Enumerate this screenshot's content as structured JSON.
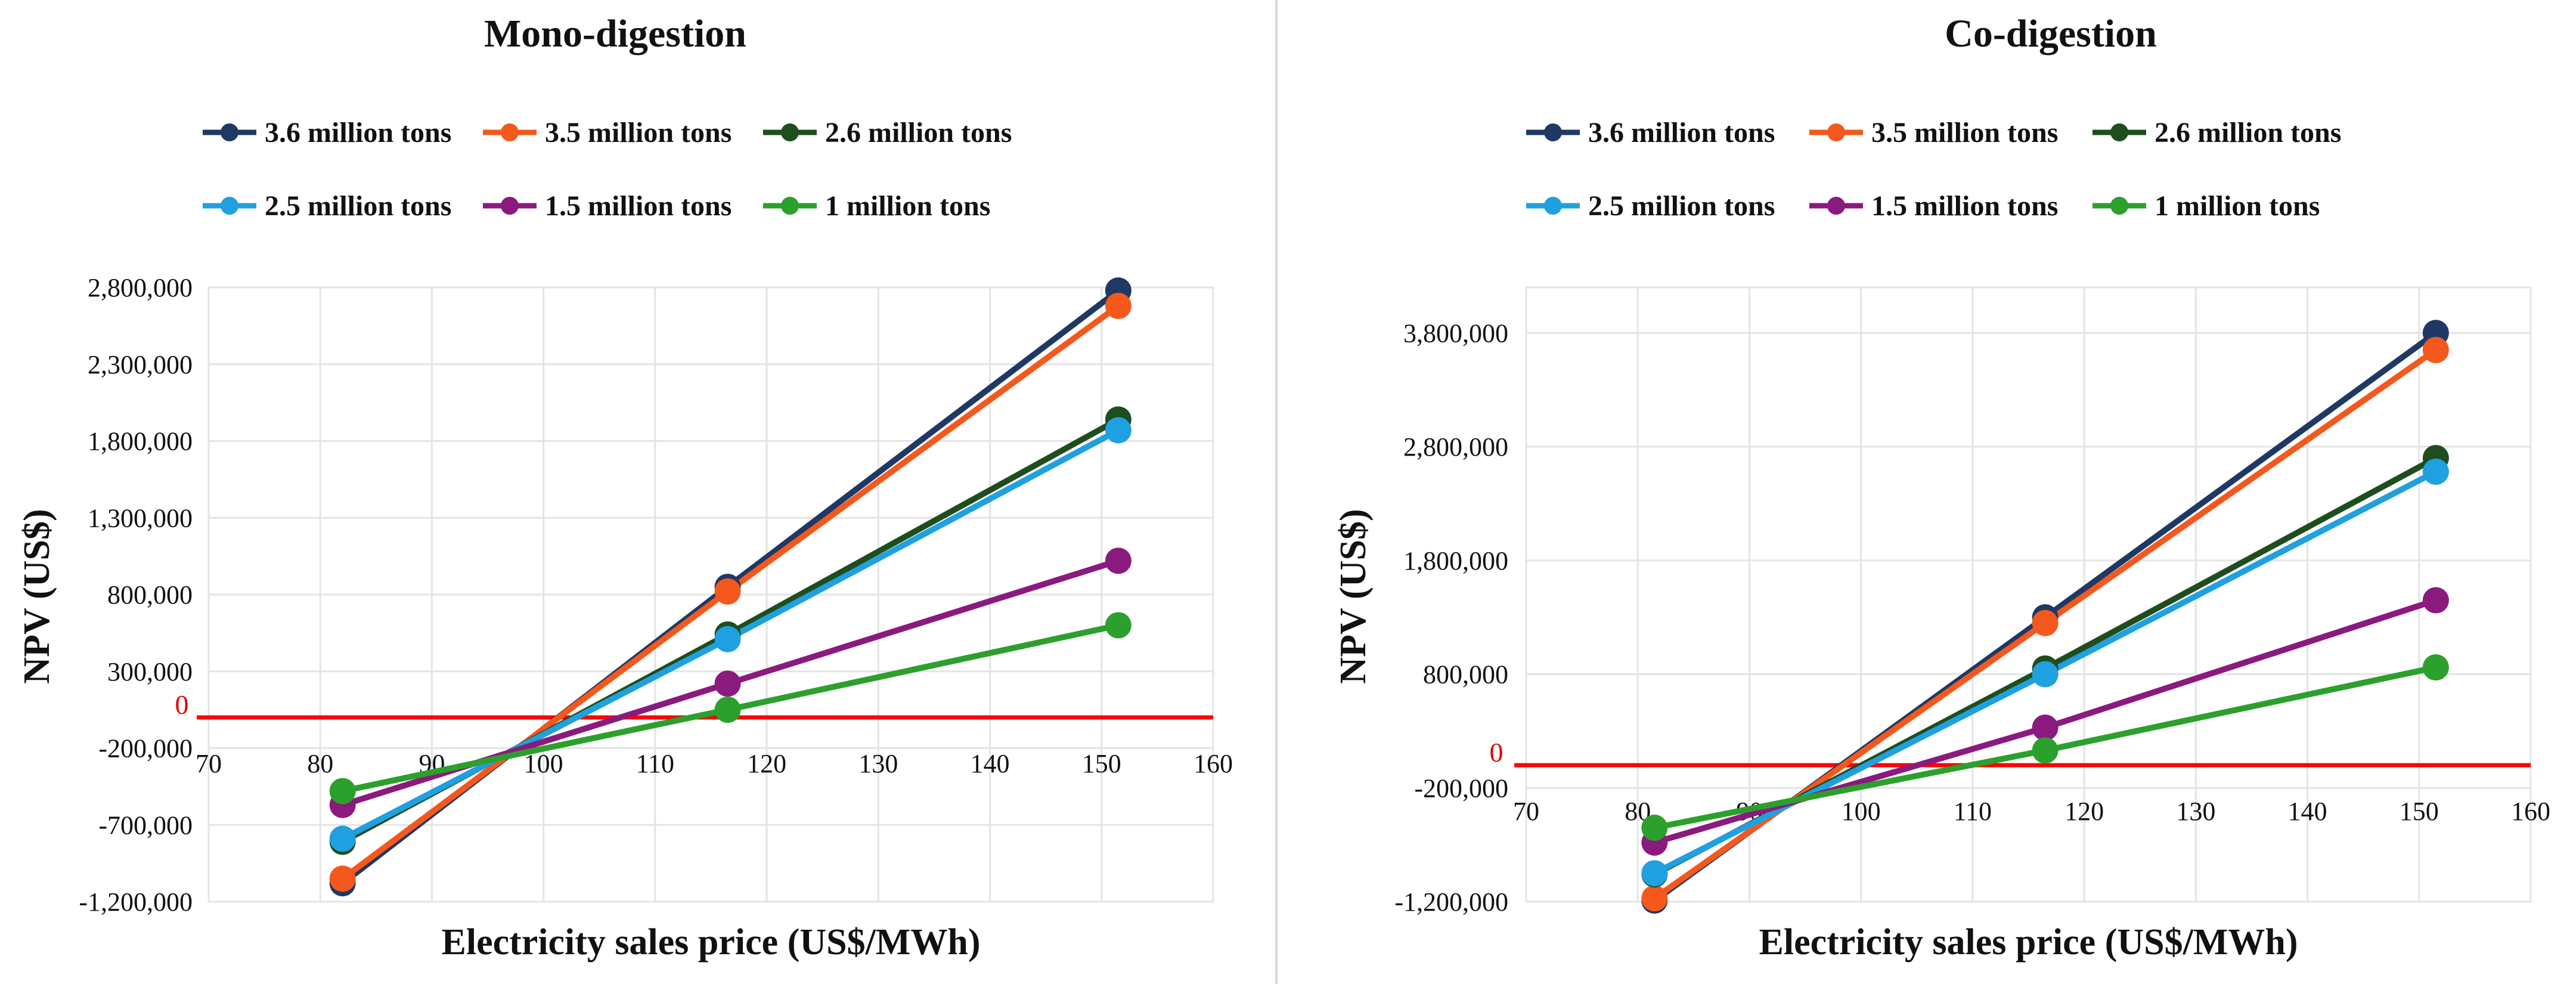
{
  "chart_data": [
    {
      "type": "line",
      "title": "Mono-digestion",
      "xlabel": "Electricity sales price (US$/MWh)",
      "ylabel": "NPV (US$)",
      "xlim": [
        70,
        160
      ],
      "ylim": [
        -1200000,
        2800000
      ],
      "xticks": [
        "70",
        "80",
        "90",
        "100",
        "110",
        "120",
        "130",
        "140",
        "150",
        "160"
      ],
      "yticks": [
        "2,800,000",
        "2,300,000",
        "1,800,000",
        "1,300,000",
        "800,000",
        "300,000",
        "-200,000",
        "-700,000",
        "-1,200,000"
      ],
      "ytick_values": [
        2800000,
        2300000,
        1800000,
        1300000,
        800000,
        300000,
        -200000,
        -700000,
        -1200000
      ],
      "zero_label": "0",
      "x": [
        82,
        116.5,
        151.5
      ],
      "series": [
        {
          "name": "3.6 million tons",
          "color": "#1f3864",
          "values": [
            -1080000,
            850000,
            2780000
          ]
        },
        {
          "name": "3.5 million tons",
          "color": "#f4581c",
          "values": [
            -1050000,
            820000,
            2680000
          ]
        },
        {
          "name": "2.6 million tons",
          "color": "#1e4d1e",
          "values": [
            -810000,
            540000,
            1940000
          ]
        },
        {
          "name": "2.5 million tons",
          "color": "#1fa0e0",
          "values": [
            -790000,
            510000,
            1870000
          ]
        },
        {
          "name": "1.5 million tons",
          "color": "#8b1a7e",
          "values": [
            -570000,
            220000,
            1020000
          ]
        },
        {
          "name": "1 million tons",
          "color": "#2ca02c",
          "values": [
            -480000,
            50000,
            600000
          ]
        }
      ],
      "legend": "top"
    },
    {
      "type": "line",
      "title": "Co-digestion",
      "xlabel": "Electricity sales price (US$/MWh)",
      "ylabel": "NPV (US$)",
      "xlim": [
        70,
        160
      ],
      "ylim": [
        -1200000,
        4200000
      ],
      "xticks": [
        "70",
        "80",
        "90",
        "100",
        "110",
        "120",
        "130",
        "140",
        "150",
        "160"
      ],
      "yticks": [
        "3,800,000",
        "2,800,000",
        "1,800,000",
        "800,000",
        "-200,000",
        "-1,200,000"
      ],
      "ytick_values": [
        3800000,
        2800000,
        1800000,
        800000,
        -200000,
        -1200000
      ],
      "zero_label": "0",
      "x": [
        81.5,
        116.5,
        151.5
      ],
      "series": [
        {
          "name": "3.6 million tons",
          "color": "#1f3864",
          "values": [
            -1190000,
            1300000,
            3800000
          ]
        },
        {
          "name": "3.5 million tons",
          "color": "#f4581c",
          "values": [
            -1170000,
            1250000,
            3650000
          ]
        },
        {
          "name": "2.6 million tons",
          "color": "#1e4d1e",
          "values": [
            -960000,
            850000,
            2700000
          ]
        },
        {
          "name": "2.5 million tons",
          "color": "#1fa0e0",
          "values": [
            -950000,
            800000,
            2580000
          ]
        },
        {
          "name": "1.5 million tons",
          "color": "#8b1a7e",
          "values": [
            -680000,
            330000,
            1450000
          ]
        },
        {
          "name": "1 million tons",
          "color": "#2ca02c",
          "values": [
            -550000,
            130000,
            860000
          ]
        }
      ],
      "legend": "top"
    }
  ],
  "colors": {
    "zero_line": "#ff0000",
    "grid": "#e4e4e4",
    "divider": "#d9d9d9"
  }
}
